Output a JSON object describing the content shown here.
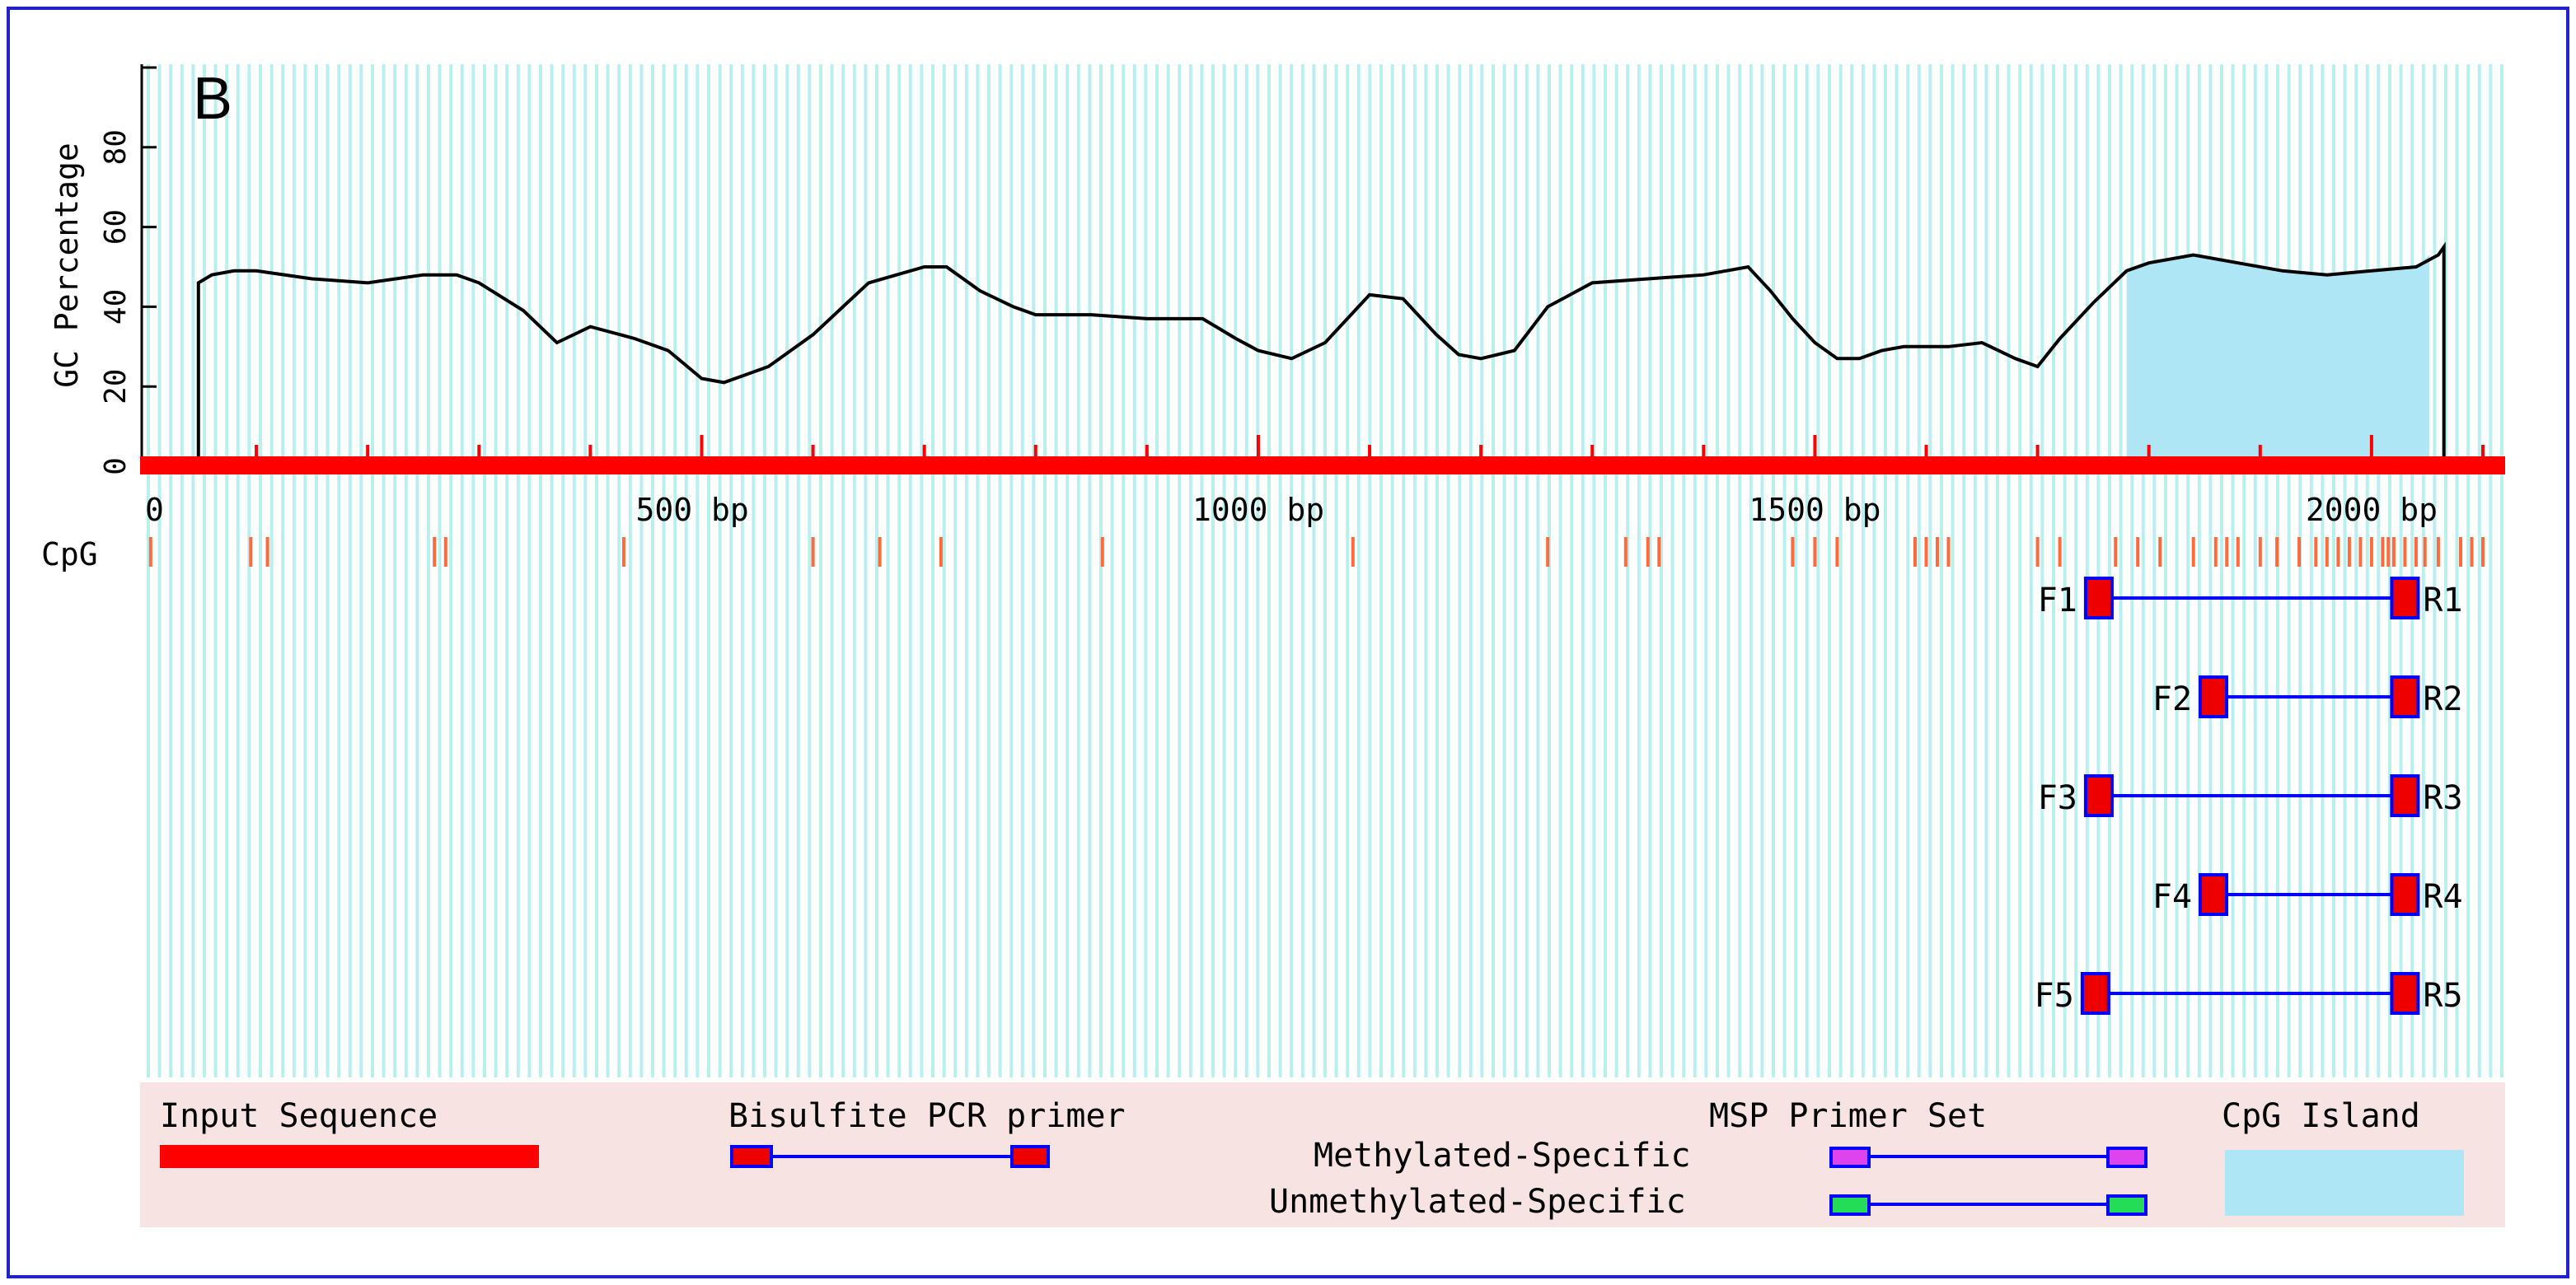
{
  "panel_label": "B",
  "chart_data": {
    "type": "line",
    "ylabel": "GC Percentage",
    "y_ticks": [
      "0",
      "20",
      "40",
      "60",
      "80"
    ],
    "ylim": [
      0,
      100
    ],
    "xlim": [
      0,
      2120
    ],
    "x_tick_labels": [
      {
        "value": 0,
        "label": "0"
      },
      {
        "value": 500,
        "label": "500 bp"
      },
      {
        "value": 1000,
        "label": "1000 bp"
      },
      {
        "value": 1500,
        "label": "1500 bp"
      },
      {
        "value": 2000,
        "label": "2000 bp"
      }
    ],
    "gc_profile": {
      "x": [
        0,
        48,
        48,
        60,
        80,
        100,
        150,
        200,
        250,
        280,
        300,
        340,
        370,
        400,
        440,
        470,
        500,
        520,
        540,
        560,
        600,
        650,
        700,
        720,
        750,
        780,
        800,
        850,
        900,
        950,
        980,
        1000,
        1030,
        1060,
        1090,
        1100,
        1130,
        1160,
        1180,
        1200,
        1230,
        1260,
        1300,
        1350,
        1400,
        1440,
        1460,
        1480,
        1500,
        1520,
        1540,
        1560,
        1580,
        1620,
        1650,
        1680,
        1700,
        1720,
        1750,
        1780,
        1800,
        1840,
        1880,
        1920,
        1960,
        2000,
        2040,
        2060,
        2065,
        2065,
        2120
      ],
      "y": [
        0,
        0,
        46,
        48,
        49,
        49,
        47,
        46,
        48,
        48,
        46,
        39,
        31,
        35,
        32,
        29,
        22,
        21,
        23,
        25,
        33,
        46,
        50,
        50,
        44,
        40,
        38,
        38,
        37,
        37,
        32,
        29,
        27,
        31,
        40,
        43,
        42,
        33,
        28,
        27,
        29,
        40,
        46,
        47,
        48,
        50,
        44,
        37,
        31,
        27,
        27,
        29,
        30,
        30,
        31,
        27,
        25,
        32,
        41,
        49,
        51,
        53,
        51,
        49,
        48,
        49,
        50,
        53,
        55,
        0,
        0
      ]
    },
    "cpg_island": {
      "start": 1780,
      "end": 2052
    },
    "cpg_sites": [
      5,
      95,
      110,
      260,
      270,
      430,
      600,
      660,
      715,
      860,
      1085,
      1260,
      1330,
      1350,
      1360,
      1480,
      1500,
      1520,
      1590,
      1600,
      1610,
      1620,
      1700,
      1720,
      1770,
      1790,
      1810,
      1840,
      1860,
      1870,
      1880,
      1900,
      1915,
      1935,
      1950,
      1960,
      1970,
      1980,
      1990,
      2000,
      2010,
      2015,
      2020,
      2030,
      2040,
      2048,
      2060,
      2080,
      2090,
      2100
    ],
    "primer_sets": [
      {
        "forward": "F1",
        "reverse": "R1",
        "start": 1755,
        "end": 2030
      },
      {
        "forward": "F2",
        "reverse": "R2",
        "start": 1858,
        "end": 2030
      },
      {
        "forward": "F3",
        "reverse": "R3",
        "start": 1755,
        "end": 2030
      },
      {
        "forward": "F4",
        "reverse": "R4",
        "start": 1858,
        "end": 2030
      },
      {
        "forward": "F5",
        "reverse": "R5",
        "start": 1752,
        "end": 2030
      }
    ],
    "track_label": "CpG"
  },
  "legend": {
    "input_sequence": "Input Sequence",
    "bisulfite_pcr_primer": "Bisulfite PCR primer",
    "msp_primer_set": "MSP Primer Set",
    "methylated_specific": "Methylated-Specific",
    "unmethylated_specific": "Unmethylated-Specific",
    "cpg_island": "CpG Island"
  },
  "colors": {
    "sequence_bar": "#ff0000",
    "stripe": "#b8f0f0",
    "cpg_island_fill": "#aee6f6",
    "cpg_site": "#ff6a3d",
    "primer_box": "#ee0000",
    "primer_line": "#0000ff",
    "legend_bg": "#f7e4e2",
    "methylated": "#dd44ee",
    "unmethylated": "#22dd55",
    "frame": "#2222cc"
  }
}
